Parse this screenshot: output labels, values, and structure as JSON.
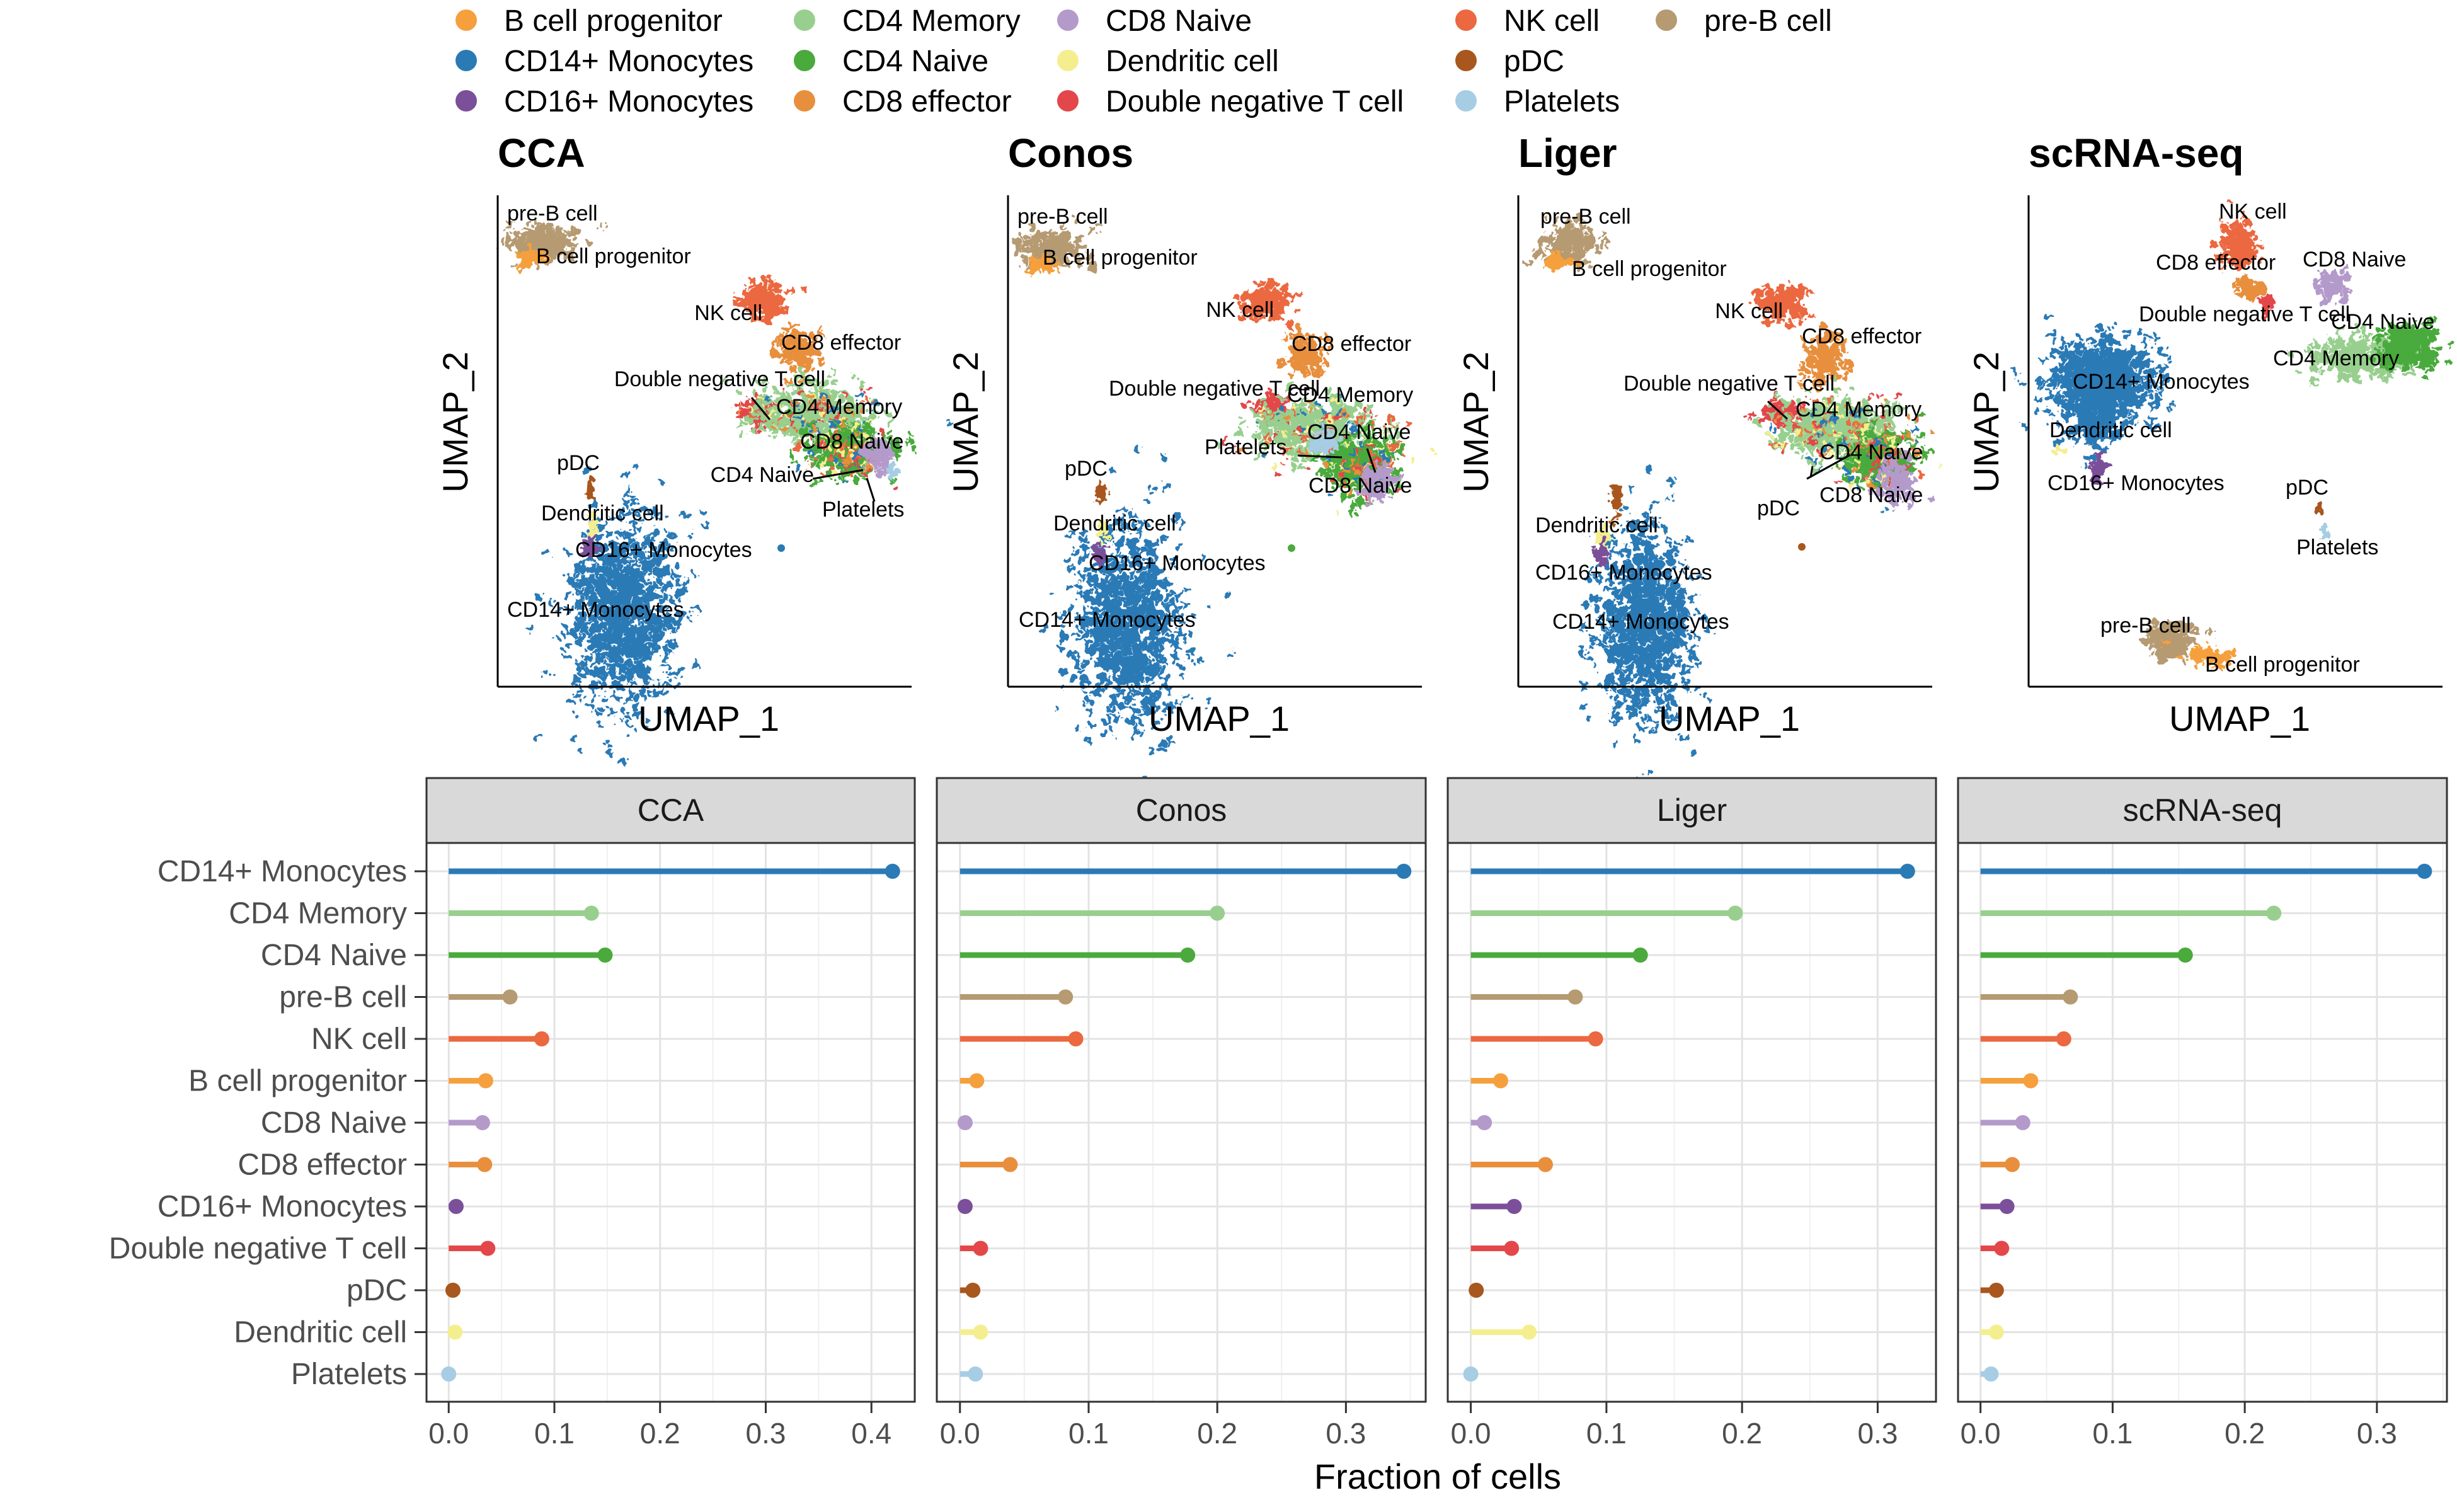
{
  "legend": [
    {
      "name": "B cell progenitor",
      "color": "#F5A03C"
    },
    {
      "name": "CD14+ Monocytes",
      "color": "#2A7AB6"
    },
    {
      "name": "CD16+ Monocytes",
      "color": "#7B4F99"
    },
    {
      "name": "CD4 Memory",
      "color": "#98CF8E"
    },
    {
      "name": "CD4 Naive",
      "color": "#4AAA3C"
    },
    {
      "name": "CD8 effector",
      "color": "#E88F3E"
    },
    {
      "name": "CD8 Naive",
      "color": "#B49ACB"
    },
    {
      "name": "Dendritic cell",
      "color": "#F5EE8E"
    },
    {
      "name": "Double negative T cell",
      "color": "#E3474A"
    },
    {
      "name": "NK cell",
      "color": "#EB6840"
    },
    {
      "name": "pDC",
      "color": "#A8571E"
    },
    {
      "name": "Platelets",
      "color": "#A6CDE3"
    },
    {
      "name": "pre-B cell",
      "color": "#B59A72"
    }
  ],
  "umap": {
    "xlabel": "UMAP_1",
    "ylabel": "UMAP_2",
    "panels": [
      {
        "title": "CCA",
        "labels": [
          "pre-B cell",
          "B cell progenitor",
          "NK cell",
          "CD8 effector",
          "Double negative T cell",
          "CD4 Memory",
          "CD8 Naive",
          "pDC",
          "CD4 Naive",
          "Platelets",
          "Dendritic cell",
          "CD16+ Monocytes",
          "CD14+ Monocytes"
        ]
      },
      {
        "title": "Conos",
        "labels": [
          "pre-B cell",
          "B cell progenitor",
          "NK cell",
          "CD8 effector",
          "Double negative T cell",
          "CD4 Memory",
          "CD4 Naive",
          "Platelets",
          "pDC",
          "CD8 Naive",
          "Dendritic cell",
          "CD16+ Monocytes",
          "CD14+ Monocytes"
        ]
      },
      {
        "title": "Liger",
        "labels": [
          "pre-B cell",
          "B cell progenitor",
          "NK cell",
          "CD8 effector",
          "Double negative T cell",
          "CD4 Memory",
          "CD4 Naive",
          "pDC",
          "CD8 Naive",
          "Dendritic cell",
          "CD16+ Monocytes",
          "CD14+ Monocytes"
        ]
      },
      {
        "title": "scRNA-seq",
        "labels": [
          "NK cell",
          "CD8 effector",
          "CD8 Naive",
          "Double negative T cell",
          "CD4 Naive",
          "CD4 Memory",
          "CD14+ Monocytes",
          "Dendritic cell",
          "CD16+ Monocytes",
          "pDC",
          "Platelets",
          "pre-B cell",
          "B cell progenitor"
        ]
      }
    ]
  },
  "chart_data": {
    "type": "lollipop",
    "xlabel": "Fraction of cells",
    "categories": [
      "CD14+ Monocytes",
      "CD4 Memory",
      "CD4 Naive",
      "pre-B cell",
      "NK cell",
      "B cell progenitor",
      "CD8 Naive",
      "CD8 effector",
      "CD16+ Monocytes",
      "Double negative T cell",
      "pDC",
      "Dendritic cell",
      "Platelets"
    ],
    "colors": [
      "#2A7AB6",
      "#98CF8E",
      "#4AAA3C",
      "#B59A72",
      "#EB6840",
      "#F5A03C",
      "#B49ACB",
      "#E88F3E",
      "#7B4F99",
      "#E3474A",
      "#A8571E",
      "#F5EE8E",
      "#A6CDE3"
    ],
    "xticks": [
      "0.0",
      "0.1",
      "0.2",
      "0.3",
      "0.4"
    ],
    "panels": [
      {
        "name": "CCA",
        "xlim": [
          -0.021,
          0.441
        ],
        "ticks": [
          0,
          0.1,
          0.2,
          0.3,
          0.4
        ],
        "values": [
          0.42,
          0.135,
          0.148,
          0.058,
          0.088,
          0.035,
          0.032,
          0.034,
          0.007,
          0.037,
          0.004,
          0.006,
          0.0
        ]
      },
      {
        "name": "Conos",
        "xlim": [
          -0.018,
          0.362
        ],
        "ticks": [
          0,
          0.1,
          0.2,
          0.3
        ],
        "values": [
          0.345,
          0.2,
          0.177,
          0.082,
          0.09,
          0.013,
          0.004,
          0.039,
          0.004,
          0.016,
          0.01,
          0.016,
          0.012
        ]
      },
      {
        "name": "Liger",
        "xlim": [
          -0.017,
          0.343
        ],
        "ticks": [
          0,
          0.1,
          0.2,
          0.3
        ],
        "values": [
          0.322,
          0.195,
          0.125,
          0.077,
          0.092,
          0.022,
          0.01,
          0.055,
          0.032,
          0.03,
          0.004,
          0.043,
          0.0
        ]
      },
      {
        "name": "scRNA-seq",
        "xlim": [
          -0.017,
          0.353
        ],
        "ticks": [
          0,
          0.1,
          0.2,
          0.3
        ],
        "values": [
          0.336,
          0.222,
          0.155,
          0.068,
          0.063,
          0.038,
          0.032,
          0.024,
          0.02,
          0.016,
          0.012,
          0.012,
          0.008
        ]
      }
    ]
  }
}
